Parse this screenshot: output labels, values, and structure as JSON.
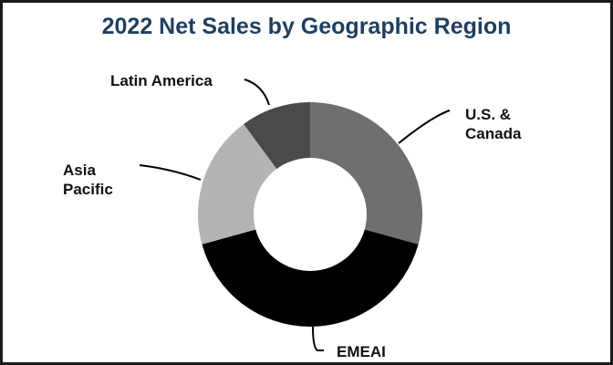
{
  "chart_data": {
    "type": "pie",
    "subtype": "donut",
    "title": "2022 Net Sales by Geographic Region",
    "categories": [
      "U.S. & Canada",
      "EMEAI",
      "Asia Pacific",
      "Latin America"
    ],
    "values": [
      29,
      41,
      19,
      10
    ],
    "unit": "percent (estimated from slice angles)",
    "colors": [
      "#6f6f6f",
      "#000000",
      "#b4b4b4",
      "#4a4a4a"
    ],
    "legend": "none (leader-line labels)",
    "start_angle": "12 o'clock, clockwise"
  },
  "header": {
    "title": "2022 Net Sales by Geographic Region"
  },
  "labels": {
    "us_canada": "U.S. &\nCanada",
    "emeai": "EMEAI",
    "asia_pacific": "Asia\nPacific",
    "latin_america": "Latin America"
  },
  "colors": {
    "title": "#1f3f5f",
    "border": "#1a1a1a"
  }
}
